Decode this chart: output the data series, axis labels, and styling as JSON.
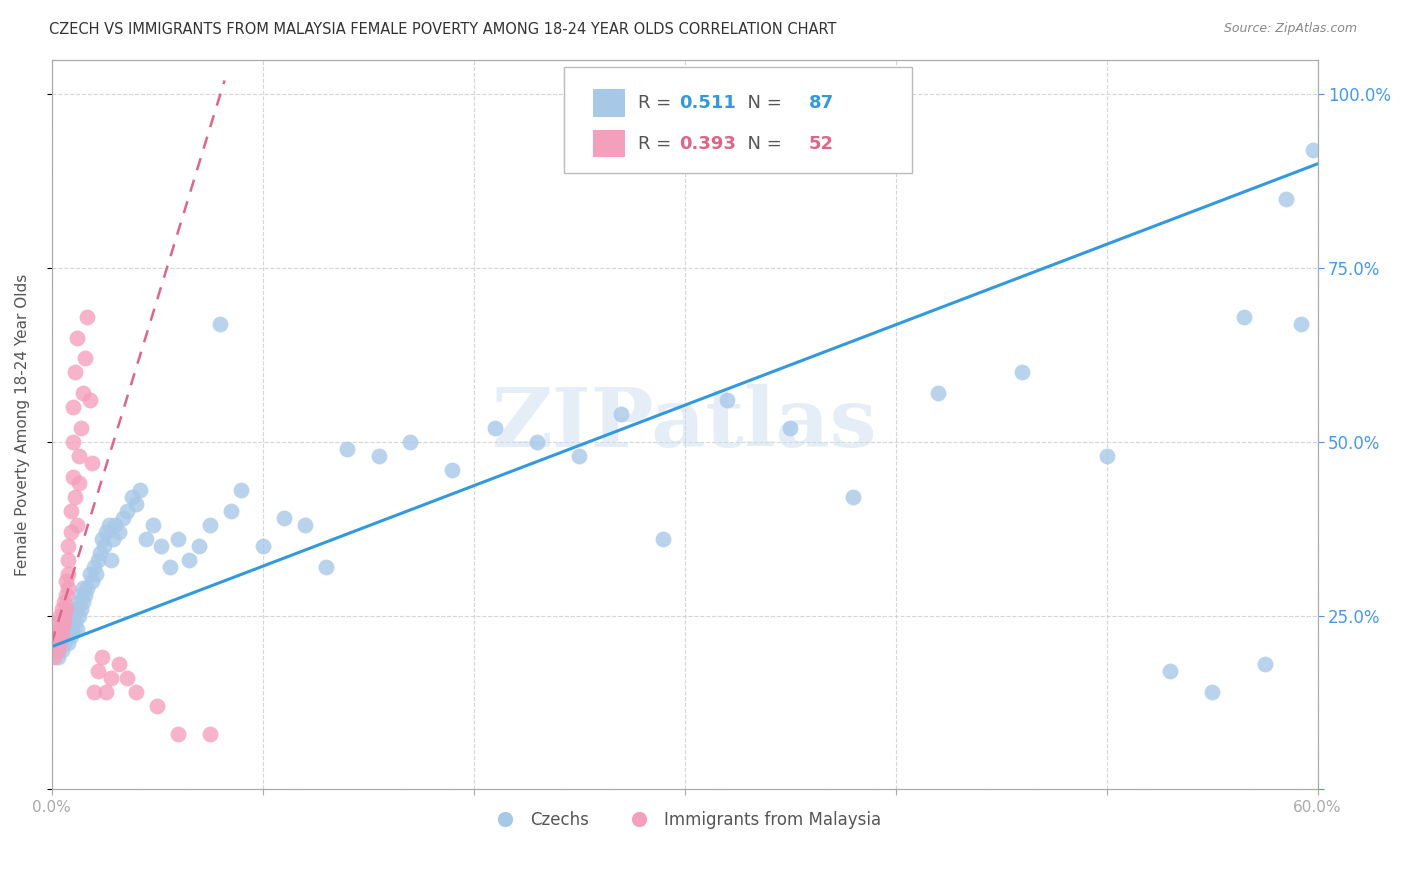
{
  "title": "CZECH VS IMMIGRANTS FROM MALAYSIA FEMALE POVERTY AMONG 18-24 YEAR OLDS CORRELATION CHART",
  "source": "Source: ZipAtlas.com",
  "ylabel": "Female Poverty Among 18-24 Year Olds",
  "xlim": [
    0.0,
    0.6
  ],
  "ylim": [
    0.0,
    1.05
  ],
  "czech_R": 0.511,
  "czech_N": 87,
  "malaysia_R": 0.393,
  "malaysia_N": 52,
  "czech_color": "#a8c8e8",
  "malaysia_color": "#f4a0bc",
  "czech_line_color": "#3399dd",
  "malaysia_line_color": "#dd6688",
  "legend_label_czech": "Czechs",
  "legend_label_malaysia": "Immigrants from Malaysia",
  "watermark": "ZIPatlas",
  "background_color": "#ffffff",
  "grid_color": "#cccccc",
  "axis_color": "#aaaaaa",
  "right_axis_color": "#4499ee",
  "title_color": "#333333",
  "czech_line_x0": 0.0,
  "czech_line_y0": 0.205,
  "czech_line_x1": 0.6,
  "czech_line_y1": 0.9,
  "malaysia_line_x0": 0.0,
  "malaysia_line_y0": 0.21,
  "malaysia_line_x1": 0.082,
  "malaysia_line_y1": 1.02,
  "czech_x": [
    0.001,
    0.002,
    0.002,
    0.003,
    0.003,
    0.004,
    0.004,
    0.005,
    0.005,
    0.006,
    0.006,
    0.007,
    0.007,
    0.008,
    0.008,
    0.009,
    0.009,
    0.01,
    0.01,
    0.011,
    0.011,
    0.012,
    0.012,
    0.013,
    0.013,
    0.014,
    0.014,
    0.015,
    0.015,
    0.016,
    0.017,
    0.018,
    0.019,
    0.02,
    0.021,
    0.022,
    0.023,
    0.024,
    0.025,
    0.026,
    0.027,
    0.028,
    0.029,
    0.03,
    0.032,
    0.034,
    0.036,
    0.038,
    0.04,
    0.042,
    0.045,
    0.048,
    0.052,
    0.056,
    0.06,
    0.065,
    0.07,
    0.075,
    0.08,
    0.085,
    0.09,
    0.1,
    0.11,
    0.12,
    0.13,
    0.14,
    0.155,
    0.17,
    0.19,
    0.21,
    0.23,
    0.25,
    0.27,
    0.29,
    0.32,
    0.35,
    0.38,
    0.42,
    0.46,
    0.5,
    0.53,
    0.55,
    0.565,
    0.575,
    0.585,
    0.592,
    0.598
  ],
  "czech_y": [
    0.21,
    0.22,
    0.2,
    0.23,
    0.19,
    0.22,
    0.21,
    0.24,
    0.2,
    0.23,
    0.21,
    0.24,
    0.22,
    0.25,
    0.21,
    0.23,
    0.22,
    0.25,
    0.23,
    0.26,
    0.24,
    0.26,
    0.23,
    0.27,
    0.25,
    0.28,
    0.26,
    0.27,
    0.29,
    0.28,
    0.29,
    0.31,
    0.3,
    0.32,
    0.31,
    0.33,
    0.34,
    0.36,
    0.35,
    0.37,
    0.38,
    0.33,
    0.36,
    0.38,
    0.37,
    0.39,
    0.4,
    0.42,
    0.41,
    0.43,
    0.36,
    0.38,
    0.35,
    0.32,
    0.36,
    0.33,
    0.35,
    0.38,
    0.67,
    0.4,
    0.43,
    0.35,
    0.39,
    0.38,
    0.32,
    0.49,
    0.48,
    0.5,
    0.46,
    0.52,
    0.5,
    0.48,
    0.54,
    0.36,
    0.56,
    0.52,
    0.42,
    0.57,
    0.6,
    0.48,
    0.17,
    0.14,
    0.68,
    0.18,
    0.85,
    0.67,
    0.92
  ],
  "malaysia_x": [
    0.001,
    0.001,
    0.002,
    0.002,
    0.003,
    0.003,
    0.003,
    0.004,
    0.004,
    0.004,
    0.005,
    0.005,
    0.005,
    0.005,
    0.006,
    0.006,
    0.006,
    0.007,
    0.007,
    0.007,
    0.008,
    0.008,
    0.008,
    0.008,
    0.009,
    0.009,
    0.01,
    0.01,
    0.01,
    0.011,
    0.011,
    0.012,
    0.012,
    0.013,
    0.013,
    0.014,
    0.015,
    0.016,
    0.017,
    0.018,
    0.019,
    0.02,
    0.022,
    0.024,
    0.026,
    0.028,
    0.032,
    0.036,
    0.04,
    0.05,
    0.06,
    0.075
  ],
  "malaysia_y": [
    0.19,
    0.21,
    0.22,
    0.21,
    0.22,
    0.24,
    0.2,
    0.23,
    0.25,
    0.21,
    0.24,
    0.22,
    0.26,
    0.23,
    0.25,
    0.27,
    0.24,
    0.28,
    0.26,
    0.3,
    0.31,
    0.29,
    0.33,
    0.35,
    0.37,
    0.4,
    0.45,
    0.5,
    0.55,
    0.6,
    0.42,
    0.65,
    0.38,
    0.44,
    0.48,
    0.52,
    0.57,
    0.62,
    0.68,
    0.56,
    0.47,
    0.14,
    0.17,
    0.19,
    0.14,
    0.16,
    0.18,
    0.16,
    0.14,
    0.12,
    0.08,
    0.08
  ]
}
